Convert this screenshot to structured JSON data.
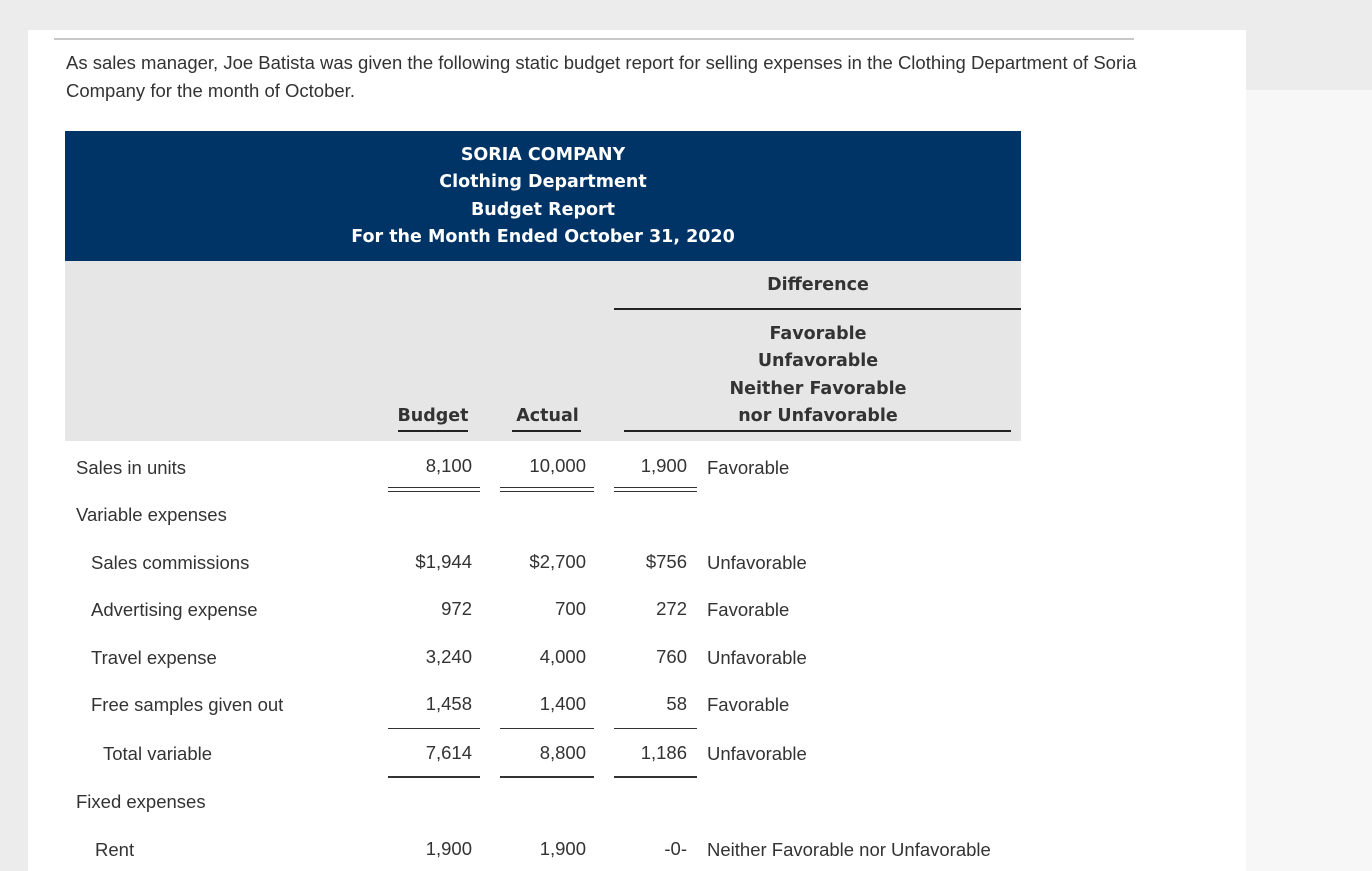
{
  "intro": "As sales manager, Joe Batista was given the following static budget report for selling expenses in the Clothing Department of Soria Company for the month of October.",
  "report": {
    "company": "SORIA COMPANY",
    "department": "Clothing Department",
    "report_name": "Budget Report",
    "period": "For the Month Ended October 31, 2020",
    "col_budget": "Budget",
    "col_actual": "Actual",
    "col_difference": "Difference",
    "col_diff_options": [
      "Favorable",
      "Unfavorable",
      "Neither Favorable",
      "nor Unfavorable"
    ],
    "rows": [
      {
        "label": "Sales in units",
        "budget": "8,100",
        "actual": "10,000",
        "diff": "1,900",
        "assessment": "Favorable"
      },
      {
        "label": "Variable expenses",
        "budget": "",
        "actual": "",
        "diff": "",
        "assessment": ""
      },
      {
        "label": "Sales commissions",
        "budget": "$1,944",
        "actual": "$2,700",
        "diff": "$756",
        "assessment": "Unfavorable"
      },
      {
        "label": "Advertising expense",
        "budget": "972",
        "actual": "700",
        "diff": "272",
        "assessment": "Favorable"
      },
      {
        "label": "Travel expense",
        "budget": "3,240",
        "actual": "4,000",
        "diff": "760",
        "assessment": "Unfavorable"
      },
      {
        "label": "Free samples given out",
        "budget": "1,458",
        "actual": "1,400",
        "diff": "58",
        "assessment": "Favorable"
      },
      {
        "label": "Total variable",
        "budget": "7,614",
        "actual": "8,800",
        "diff": "1,186",
        "assessment": "Unfavorable"
      },
      {
        "label": "Fixed expenses",
        "budget": "",
        "actual": "",
        "diff": "",
        "assessment": ""
      },
      {
        "label": "Rent",
        "budget": "1,900",
        "actual": "1,900",
        "diff": "-0-",
        "assessment": "Neither Favorable nor Unfavorable"
      }
    ]
  }
}
